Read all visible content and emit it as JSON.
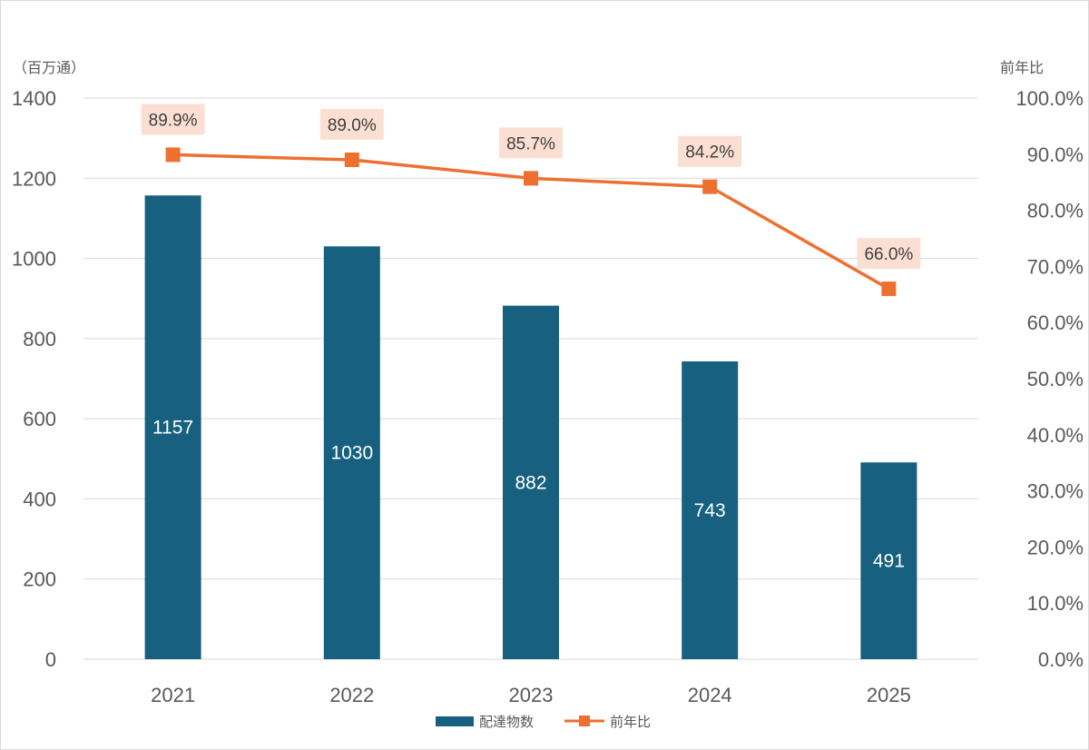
{
  "chart_data": {
    "type": "bar",
    "categories": [
      "2021",
      "2022",
      "2023",
      "2024",
      "2025"
    ],
    "series": [
      {
        "name": "配達物数",
        "type": "bar",
        "axis": "left",
        "values": [
          1157,
          1030,
          882,
          743,
          491
        ],
        "labels": [
          "1157",
          "1030",
          "882",
          "743",
          "491"
        ],
        "color": "#17607f"
      },
      {
        "name": "前年比",
        "type": "line",
        "axis": "right",
        "values": [
          89.9,
          89.0,
          85.7,
          84.2,
          66.0
        ],
        "labels": [
          "89.9%",
          "89.0%",
          "85.7%",
          "84.2%",
          "66.0%"
        ],
        "color": "#ed7031",
        "label_bg": "#fbdfd2"
      }
    ],
    "y_left": {
      "unit": "（百万通）",
      "ylim": [
        0,
        1400
      ],
      "ticks": [
        "0",
        "200",
        "400",
        "600",
        "800",
        "1000",
        "1200",
        "1400"
      ]
    },
    "y_right": {
      "unit": "前年比",
      "ylim": [
        0,
        100
      ],
      "ticks": [
        "0.0%",
        "10.0%",
        "20.0%",
        "30.0%",
        "40.0%",
        "50.0%",
        "60.0%",
        "70.0%",
        "80.0%",
        "90.0%",
        "100.0%"
      ]
    },
    "grid": true,
    "legend": "bottom",
    "gridline_color": "#d9d9d9"
  }
}
